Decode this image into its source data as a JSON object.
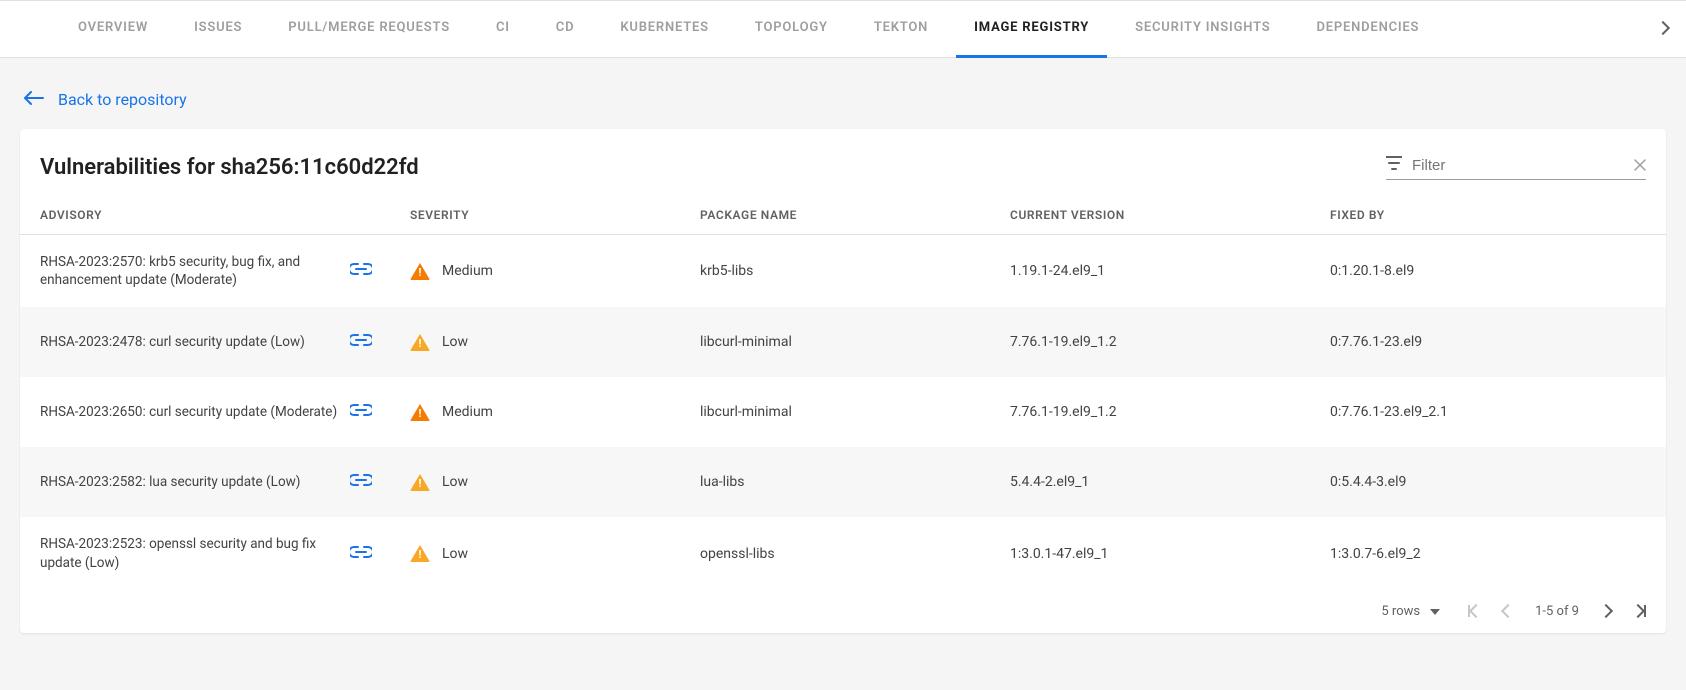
{
  "tabs": {
    "items": [
      {
        "label": "OVERVIEW",
        "active": false
      },
      {
        "label": "ISSUES",
        "active": false
      },
      {
        "label": "PULL/MERGE REQUESTS",
        "active": false
      },
      {
        "label": "CI",
        "active": false
      },
      {
        "label": "CD",
        "active": false
      },
      {
        "label": "KUBERNETES",
        "active": false
      },
      {
        "label": "TOPOLOGY",
        "active": false
      },
      {
        "label": "TEKTON",
        "active": false
      },
      {
        "label": "IMAGE REGISTRY",
        "active": true
      },
      {
        "label": "SECURITY INSIGHTS",
        "active": false
      },
      {
        "label": "DEPENDENCIES",
        "active": false
      }
    ]
  },
  "back_link": "Back to repository",
  "page_title": "Vulnerabilities for sha256:11c60d22fd",
  "filter": {
    "placeholder": "Filter"
  },
  "columns": {
    "advisory": "ADVISORY",
    "severity": "SEVERITY",
    "package": "PACKAGE NAME",
    "current": "CURRENT VERSION",
    "fixed": "FIXED BY"
  },
  "rows": [
    {
      "advisory": "RHSA-2023:2570: krb5 security, bug fix, and enhancement update (Moderate)",
      "severity": "Medium",
      "severity_color": "#f57c00",
      "package": "krb5-libs",
      "current": "1.19.1-24.el9_1",
      "fixed": "0:1.20.1-8.el9"
    },
    {
      "advisory": "RHSA-2023:2478: curl security update (Low)",
      "severity": "Low",
      "severity_color": "#f9a825",
      "package": "libcurl-minimal",
      "current": "7.76.1-19.el9_1.2",
      "fixed": "0:7.76.1-23.el9"
    },
    {
      "advisory": "RHSA-2023:2650: curl security update (Moderate)",
      "severity": "Medium",
      "severity_color": "#f57c00",
      "package": "libcurl-minimal",
      "current": "7.76.1-19.el9_1.2",
      "fixed": "0:7.76.1-23.el9_2.1"
    },
    {
      "advisory": "RHSA-2023:2582: lua security update (Low)",
      "severity": "Low",
      "severity_color": "#f9a825",
      "package": "lua-libs",
      "current": "5.4.4-2.el9_1",
      "fixed": "0:5.4.4-3.el9"
    },
    {
      "advisory": "RHSA-2023:2523: openssl security and bug fix update (Low)",
      "severity": "Low",
      "severity_color": "#f9a825",
      "package": "openssl-libs",
      "current": "1:3.0.1-47.el9_1",
      "fixed": "1:3.0.7-6.el9_2"
    }
  ],
  "pagination": {
    "rows_label": "5 rows",
    "range": "1-5 of 9"
  },
  "colors": {
    "accent": "#1a73e8",
    "tab_inactive": "#9e9e9e",
    "tab_active": "#212121",
    "bg": "#f5f5f5",
    "card_bg": "#ffffff",
    "border": "#e0e0e0",
    "text_muted": "#616161"
  }
}
